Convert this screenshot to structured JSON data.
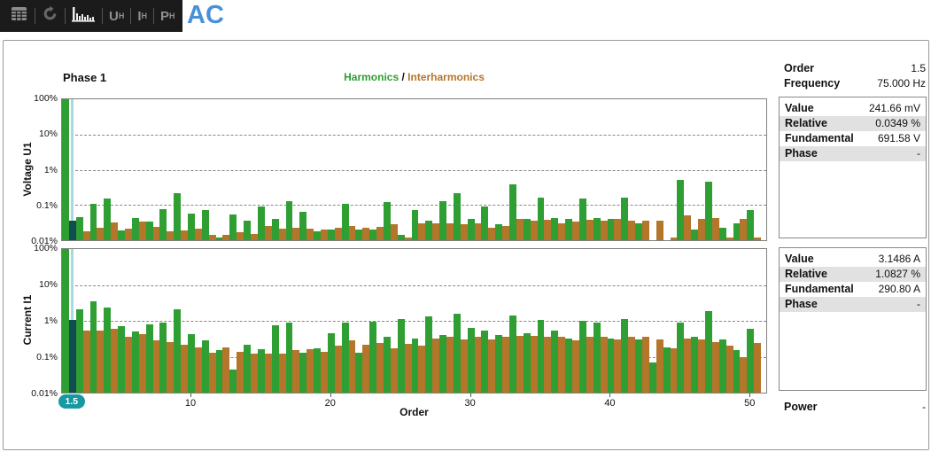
{
  "toolbar": {
    "icons": [
      {
        "name": "table-icon",
        "active": false
      },
      {
        "name": "refresh-icon",
        "active": false
      },
      {
        "name": "harmonics-chart-icon",
        "active": true
      }
    ],
    "buttons": [
      {
        "label": "U",
        "sub": "H"
      },
      {
        "label": "I",
        "sub": "H"
      },
      {
        "label": "P",
        "sub": "H"
      }
    ],
    "screen_title": "AC"
  },
  "chart": {
    "phase_title": "Phase 1",
    "legend": {
      "harmonics": "Harmonics",
      "separator": " / ",
      "interharmonics": "Interharmonics"
    },
    "xlabel": "Order",
    "x_ticks": [
      10,
      20,
      30,
      40,
      50
    ],
    "y_ticks": [
      "100%",
      "10%",
      "1%",
      "0.1%",
      "0.01%"
    ],
    "voltage_axis_label": "Voltage U1",
    "current_axis_label": "Current I1",
    "selected_order_badge": "1.5"
  },
  "chart_data": [
    {
      "type": "bar",
      "title": "Voltage U1 harmonic / interharmonic spectrum",
      "ylabel": "Voltage U1",
      "xlabel": "Order",
      "y_scale": "log",
      "y_unit": "% of fundamental",
      "ylim": [
        0.01,
        100
      ],
      "xlim": [
        0.75,
        51.25
      ],
      "grid": "dashed horizontal lines at 10%, 1%, 0.1%",
      "legend_position": "top-center",
      "selected": {
        "order": 1.5,
        "value_percent": 0.0349
      },
      "series": [
        {
          "name": "Harmonics",
          "color": "#2f9e33",
          "x_start": 1,
          "x_step": 1,
          "values": [
            100,
            0.045,
            0.11,
            0.15,
            0.019,
            0.042,
            0.034,
            0.078,
            0.21,
            0.058,
            0.072,
            0.012,
            0.055,
            0.035,
            0.092,
            0.041,
            0.13,
            0.065,
            0.018,
            0.02,
            0.11,
            0.02,
            0.02,
            0.12,
            0.014,
            0.07,
            0.035,
            0.13,
            0.22,
            0.04,
            0.09,
            0.028,
            0.38,
            0.04,
            0.16,
            0.042,
            0.04,
            0.15,
            0.042,
            0.04,
            0.16,
            0.03,
            0.005,
            0.005,
            0.5,
            0.02,
            0.45,
            0.022,
            0.03,
            0.07
          ]
        },
        {
          "name": "Interharmonics",
          "color": "#b4762a",
          "x_start": 1.5,
          "x_step": 1,
          "values": [
            0.0349,
            0.018,
            0.022,
            0.032,
            0.021,
            0.033,
            0.024,
            0.018,
            0.019,
            0.021,
            0.014,
            0.014,
            0.017,
            0.015,
            0.025,
            0.021,
            0.022,
            0.021,
            0.02,
            0.022,
            0.026,
            0.022,
            0.024,
            0.028,
            0.012,
            0.03,
            0.03,
            0.03,
            0.028,
            0.03,
            0.022,
            0.025,
            0.04,
            0.035,
            0.038,
            0.03,
            0.033,
            0.038,
            0.035,
            0.04,
            0.035,
            0.035,
            0.035,
            0.012,
            0.05,
            0.04,
            0.042,
            0.012,
            0.04,
            0.012
          ]
        }
      ]
    },
    {
      "type": "bar",
      "title": "Current I1 harmonic / interharmonic spectrum",
      "ylabel": "Current I1",
      "xlabel": "Order",
      "y_scale": "log",
      "y_unit": "% of fundamental",
      "ylim": [
        0.01,
        100
      ],
      "xlim": [
        0.75,
        51.25
      ],
      "grid": "dashed horizontal lines at 10%, 1%, 0.1%",
      "legend_position": "top-center",
      "selected": {
        "order": 1.5,
        "value_percent": 1.0827
      },
      "series": [
        {
          "name": "Harmonics",
          "color": "#2f9e33",
          "x_start": 1,
          "x_step": 1,
          "values": [
            100,
            2.1,
            3.4,
            2.3,
            0.7,
            0.5,
            0.8,
            0.9,
            2.1,
            0.42,
            0.28,
            0.15,
            0.045,
            0.22,
            0.16,
            0.75,
            0.9,
            0.13,
            0.17,
            0.45,
            0.9,
            0.13,
            0.95,
            0.35,
            1.1,
            0.32,
            1.3,
            0.4,
            1.6,
            0.65,
            0.55,
            0.4,
            1.4,
            0.45,
            1.05,
            0.55,
            0.32,
            1.0,
            0.9,
            0.32,
            1.15,
            0.3,
            0.07,
            0.18,
            0.9,
            0.35,
            1.9,
            0.3,
            0.15,
            0.6
          ]
        },
        {
          "name": "Interharmonics",
          "color": "#b4762a",
          "x_start": 1.5,
          "x_step": 1,
          "values": [
            1.0827,
            0.55,
            0.55,
            0.6,
            0.35,
            0.42,
            0.28,
            0.25,
            0.22,
            0.18,
            0.13,
            0.18,
            0.14,
            0.12,
            0.12,
            0.12,
            0.15,
            0.16,
            0.14,
            0.2,
            0.28,
            0.22,
            0.24,
            0.17,
            0.23,
            0.2,
            0.33,
            0.35,
            0.3,
            0.35,
            0.3,
            0.35,
            0.38,
            0.38,
            0.35,
            0.35,
            0.28,
            0.36,
            0.35,
            0.3,
            0.36,
            0.36,
            0.3,
            0.17,
            0.33,
            0.3,
            0.25,
            0.2,
            0.1,
            0.24
          ]
        }
      ]
    }
  ],
  "panel": {
    "order": {
      "label": "Order",
      "value": "1.5"
    },
    "frequency": {
      "label": "Frequency",
      "value": "75.000 Hz"
    },
    "voltage_box": {
      "rows": [
        {
          "label": "Value",
          "value": "241.66 mV"
        },
        {
          "label": "Relative",
          "value": "0.0349 %"
        },
        {
          "label": "Fundamental",
          "value": "691.58 V"
        },
        {
          "label": "Phase",
          "value": "-"
        }
      ]
    },
    "current_box": {
      "rows": [
        {
          "label": "Value",
          "value": "3.1486 A"
        },
        {
          "label": "Relative",
          "value": "1.0827 %"
        },
        {
          "label": "Fundamental",
          "value": "290.80 A"
        },
        {
          "label": "Phase",
          "value": "-"
        }
      ]
    },
    "power": {
      "label": "Power",
      "value": "-"
    }
  },
  "colors": {
    "harmonic_green": "#2f9e33",
    "interharmonic_orange": "#b4762a",
    "selected_teal": "#114f4f",
    "cursor_blue": "#a9d7e2",
    "badge_teal": "#1898a2",
    "accent_blue": "#4a90d8",
    "row_highlight": "#e1e1e1",
    "toolbar_bg": "#1b1b1b"
  }
}
